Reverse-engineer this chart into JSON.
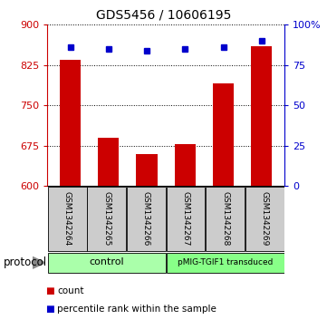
{
  "title": "GDS5456 / 10606195",
  "samples": [
    "GSM1342264",
    "GSM1342265",
    "GSM1342266",
    "GSM1342267",
    "GSM1342268",
    "GSM1342269"
  ],
  "counts": [
    835,
    690,
    660,
    678,
    790,
    860
  ],
  "percentile_ranks": [
    86,
    85,
    84,
    85,
    86,
    90
  ],
  "ylim_left": [
    600,
    900
  ],
  "ylim_right": [
    0,
    100
  ],
  "yticks_left": [
    600,
    675,
    750,
    825,
    900
  ],
  "yticks_right": [
    0,
    25,
    50,
    75,
    100
  ],
  "ytick_labels_right": [
    "0",
    "25",
    "50",
    "75",
    "100%"
  ],
  "bar_color": "#cc0000",
  "dot_color": "#0000cc",
  "bar_width": 0.55,
  "control_label": "control",
  "pmig_label": "pMIG-TGIF1 transduced",
  "control_color": "#aaffaa",
  "pmig_color": "#88ff88",
  "protocol_label": "protocol",
  "legend_count_label": "count",
  "legend_pct_label": "percentile rank within the sample",
  "left_axis_color": "#cc0000",
  "right_axis_color": "#0000cc",
  "label_bg": "#cccccc"
}
